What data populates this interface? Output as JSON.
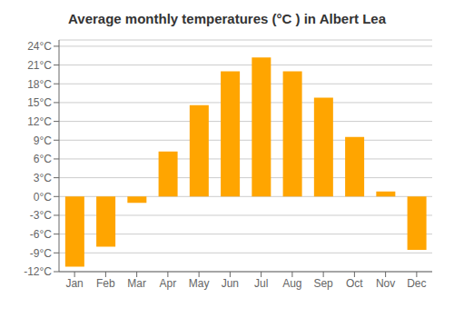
{
  "chart_data": {
    "type": "bar",
    "title": "Average monthly temperatures (°C ) in Albert Lea",
    "categories": [
      "Jan",
      "Feb",
      "Mar",
      "Apr",
      "May",
      "Jun",
      "Jul",
      "Aug",
      "Sep",
      "Oct",
      "Nov",
      "Dec"
    ],
    "values": [
      -11.2,
      -8.0,
      -1.0,
      7.2,
      14.6,
      20.0,
      22.2,
      20.0,
      15.8,
      9.5,
      0.8,
      -8.5
    ],
    "color": "#FFA500",
    "ylim": [
      -12,
      25
    ],
    "yticks": [
      {
        "value": -12,
        "label": "-12°C"
      },
      {
        "value": -9,
        "label": "-9°C"
      },
      {
        "value": -6,
        "label": "-6°C"
      },
      {
        "value": -3,
        "label": "-3°C"
      },
      {
        "value": 0,
        "label": "0°C"
      },
      {
        "value": 3,
        "label": "3°C"
      },
      {
        "value": 6,
        "label": "6°C"
      },
      {
        "value": 9,
        "label": "9°C"
      },
      {
        "value": 12,
        "label": "12°C"
      },
      {
        "value": 15,
        "label": "15°C"
      },
      {
        "value": 18,
        "label": "18°C"
      },
      {
        "value": 21,
        "label": "21°C"
      },
      {
        "value": 24,
        "label": "24°C"
      }
    ],
    "grid": true
  }
}
